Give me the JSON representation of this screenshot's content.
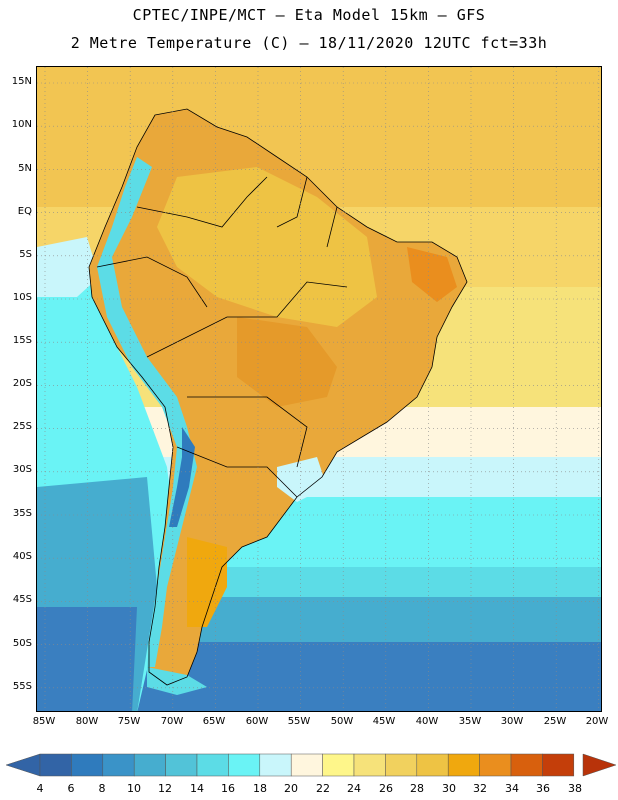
{
  "header": {
    "line1": "CPTEC/INPE/MCT –  Eta Model 15km – GFS",
    "line2": "2 Metre Temperature (C) – 18/11/2020 12UTC fct=33h"
  },
  "axes": {
    "lat_labels": [
      "15N",
      "10N",
      "5N",
      "EQ",
      "5S",
      "10S",
      "15S",
      "20S",
      "25S",
      "30S",
      "35S",
      "40S",
      "45S",
      "50S",
      "55S"
    ],
    "lon_labels": [
      "85W",
      "80W",
      "75W",
      "70W",
      "65W",
      "60W",
      "55W",
      "50W",
      "45W",
      "40W",
      "35W",
      "30W",
      "25W",
      "20W"
    ]
  },
  "colorbar": {
    "labels": [
      "4",
      "6",
      "8",
      "10",
      "12",
      "14",
      "16",
      "18",
      "20",
      "22",
      "24",
      "26",
      "28",
      "30",
      "32",
      "34",
      "36",
      "38"
    ],
    "colors": [
      "#3264a6",
      "#2f7bbd",
      "#3a93c8",
      "#46adcf",
      "#52c3d8",
      "#5cdce6",
      "#6af3f5",
      "#c9f6fb",
      "#fff6de",
      "#fef68a",
      "#f6e27a",
      "#f1d15e",
      "#eec344",
      "#f0a80e",
      "#ea8e1e",
      "#d8600d",
      "#c43e0a"
    ],
    "low_arrow_color": "#3264a6",
    "high_arrow_color": "#b8330a"
  },
  "map": {
    "ocean_warm": "#f2c552",
    "ocean_cool": "#6af3f5",
    "ocean_cold": "#3a93c8",
    "land": "#e9a83a",
    "land_hot": "#e59a2a",
    "andes": "#5cdce6"
  }
}
